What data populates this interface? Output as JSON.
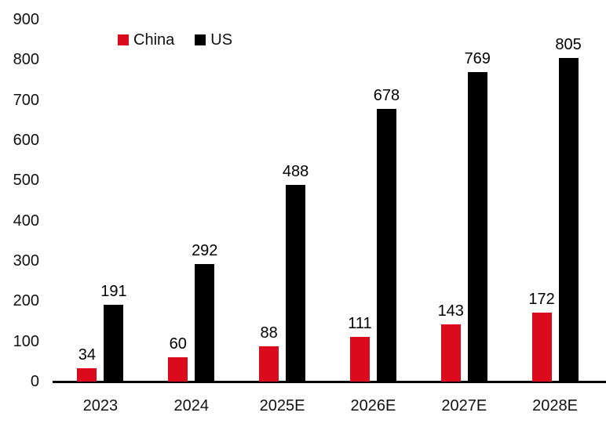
{
  "chart_data": {
    "type": "bar",
    "categories": [
      "2023",
      "2024",
      "2025E",
      "2026E",
      "2027E",
      "2028E"
    ],
    "series": [
      {
        "name": "China",
        "color": "#dc0a1d",
        "values": [
          34,
          60,
          88,
          111,
          143,
          172
        ]
      },
      {
        "name": "US",
        "color": "#000000",
        "values": [
          191,
          292,
          488,
          678,
          769,
          805
        ]
      }
    ],
    "title": "",
    "xlabel": "",
    "ylabel": "",
    "ylim": [
      0,
      900
    ],
    "ytick_step": 100,
    "yticks": [
      "0",
      "100",
      "200",
      "300",
      "400",
      "500",
      "600",
      "700",
      "800",
      "900"
    ],
    "grid": false,
    "legend_position": "top-left",
    "data_labels": true
  }
}
